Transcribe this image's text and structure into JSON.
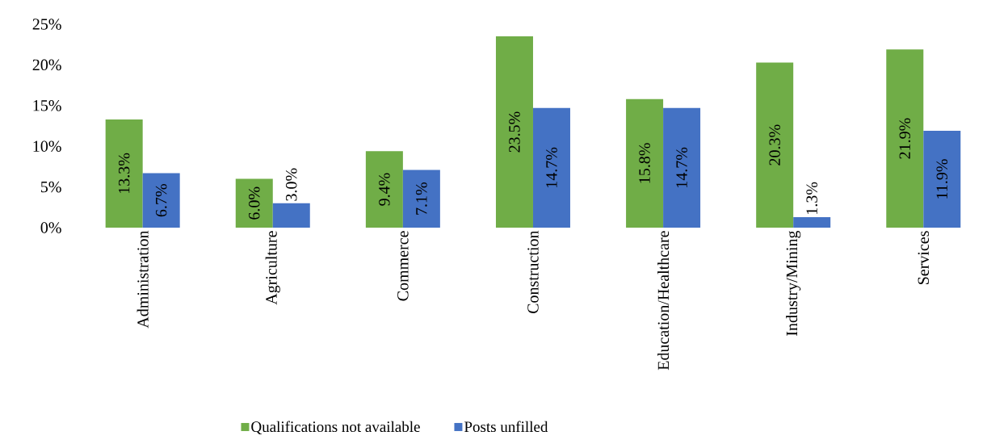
{
  "chart_data": {
    "type": "bar",
    "categories": [
      "Administration",
      "Agriculture",
      "Commerce",
      "Construction",
      "Education/Healthcare",
      "Industry/Mining",
      "Services"
    ],
    "series": [
      {
        "name": "Qualifications not available",
        "color": "#70ad47",
        "values": [
          13.3,
          6.0,
          9.4,
          23.5,
          15.8,
          20.3,
          21.9
        ],
        "value_labels": [
          "13.3%",
          "6.0%",
          "9.4%",
          "23.5%",
          "15.8%",
          "20.3%",
          "21.9%"
        ]
      },
      {
        "name": "Posts unfilled",
        "color": "#4472c4",
        "values": [
          6.7,
          3.0,
          7.1,
          14.7,
          14.7,
          1.3,
          11.9
        ],
        "value_labels": [
          "6.7%",
          "3.0%",
          "7.1%",
          "14.7%",
          "14.7%",
          "1.3%",
          "11.9%"
        ]
      }
    ],
    "ylim": [
      0,
      25
    ],
    "yticks": [
      {
        "value": 0,
        "label": "0%"
      },
      {
        "value": 5,
        "label": "5%"
      },
      {
        "value": 10,
        "label": "10%"
      },
      {
        "value": 15,
        "label": "15%"
      },
      {
        "value": 20,
        "label": "20%"
      },
      {
        "value": 25,
        "label": "25%"
      }
    ],
    "legend": "bottom"
  }
}
